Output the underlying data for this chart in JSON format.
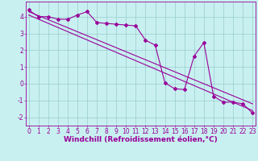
{
  "xlabel": "Windchill (Refroidissement éolien,°C)",
  "background_color": "#c8f0f0",
  "line_color": "#990099",
  "grid_color": "#99cccc",
  "x_ticks": [
    0,
    1,
    2,
    3,
    4,
    5,
    6,
    7,
    8,
    9,
    10,
    11,
    12,
    13,
    14,
    15,
    16,
    17,
    18,
    19,
    20,
    21,
    22,
    23
  ],
  "y_ticks": [
    -2,
    -1,
    0,
    1,
    2,
    3,
    4
  ],
  "xlim": [
    -0.3,
    23.3
  ],
  "ylim": [
    -2.5,
    4.9
  ],
  "line1_x": [
    0,
    1,
    2,
    3,
    4,
    5,
    6,
    7,
    8,
    9,
    10,
    11,
    12,
    13,
    14,
    15,
    16,
    17,
    18,
    19,
    20,
    21,
    22,
    23
  ],
  "line1_y": [
    4.4,
    4.0,
    4.0,
    3.85,
    3.85,
    4.1,
    4.3,
    3.65,
    3.6,
    3.55,
    3.5,
    3.45,
    2.6,
    2.3,
    0.05,
    -0.3,
    -0.35,
    1.65,
    2.45,
    -0.75,
    -1.1,
    -1.1,
    -1.2,
    -1.75
  ],
  "line2_x": [
    0,
    23
  ],
  "line2_y": [
    4.3,
    -1.2
  ],
  "line3_x": [
    0,
    23
  ],
  "line3_y": [
    4.1,
    -1.6
  ],
  "tick_fontsize": 5.5,
  "xlabel_fontsize": 6.5
}
